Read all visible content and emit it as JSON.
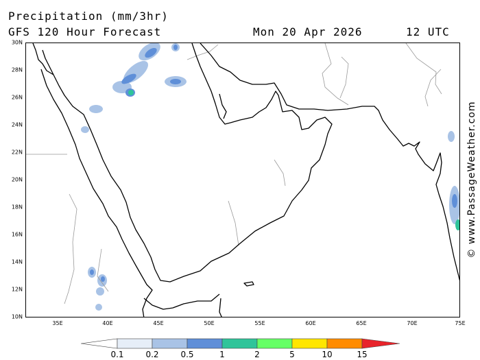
{
  "header": {
    "title": "Precipitation (mm/3hr)",
    "subtitle": "GFS 120 Hour Forecast",
    "date": "Mon 20 Apr 2026",
    "time": "12 UTC"
  },
  "map": {
    "lat_labels": [
      "30N",
      "28N",
      "26N",
      "24N",
      "22N",
      "20N",
      "18N",
      "16N",
      "14N",
      "12N",
      "10N"
    ],
    "lon_labels": [
      "35E",
      "40E",
      "45E",
      "50E",
      "55E",
      "60E",
      "65E",
      "70E",
      "75E"
    ],
    "region": "Arabian Peninsula",
    "lat_range": [
      10,
      30
    ],
    "lon_range": [
      32,
      75
    ]
  },
  "legend": {
    "labels": [
      "0.1",
      "0.2",
      "0.5",
      "1",
      "2",
      "5",
      "10",
      "15"
    ],
    "colors": [
      "#ffffff",
      "#e6eef8",
      "#a9c3e6",
      "#5f8fd8",
      "#2fc49a",
      "#66ff66",
      "#ffe600",
      "#ff8c00",
      "#e8242b"
    ]
  },
  "credit": "© www.PassageWeather.com"
}
